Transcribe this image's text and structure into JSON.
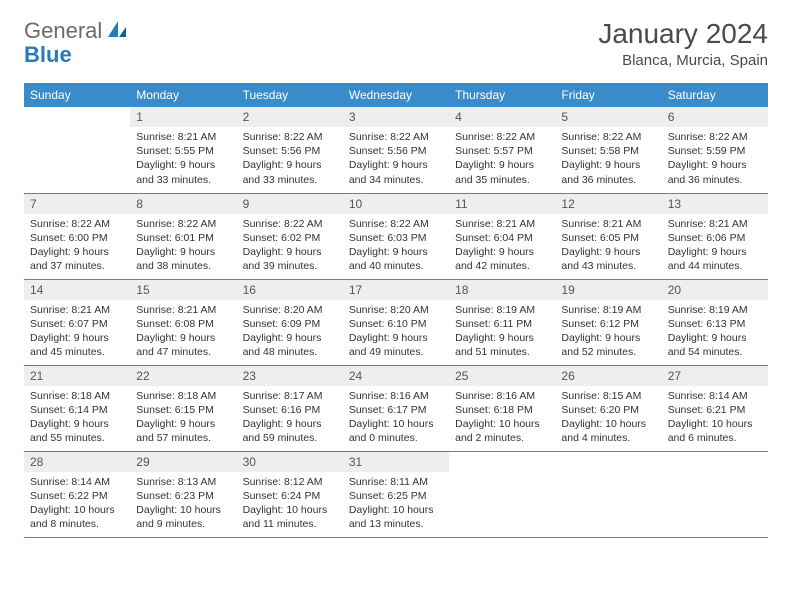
{
  "brand": {
    "part1": "General",
    "part2": "Blue"
  },
  "title": "January 2024",
  "subtitle": "Blanca, Murcia, Spain",
  "colors": {
    "header_bg": "#3a8bc9",
    "header_text": "#ffffff",
    "daynum_bg": "#eeeeee",
    "border": "#3a8bc9",
    "brand_gray": "#6b6b6b",
    "brand_blue": "#2a7ab8"
  },
  "weekdays": [
    "Sunday",
    "Monday",
    "Tuesday",
    "Wednesday",
    "Thursday",
    "Friday",
    "Saturday"
  ],
  "weeks": [
    [
      {
        "day": "",
        "sunrise": "",
        "sunset": "",
        "daylight": ""
      },
      {
        "day": "1",
        "sunrise": "Sunrise: 8:21 AM",
        "sunset": "Sunset: 5:55 PM",
        "daylight": "Daylight: 9 hours and 33 minutes."
      },
      {
        "day": "2",
        "sunrise": "Sunrise: 8:22 AM",
        "sunset": "Sunset: 5:56 PM",
        "daylight": "Daylight: 9 hours and 33 minutes."
      },
      {
        "day": "3",
        "sunrise": "Sunrise: 8:22 AM",
        "sunset": "Sunset: 5:56 PM",
        "daylight": "Daylight: 9 hours and 34 minutes."
      },
      {
        "day": "4",
        "sunrise": "Sunrise: 8:22 AM",
        "sunset": "Sunset: 5:57 PM",
        "daylight": "Daylight: 9 hours and 35 minutes."
      },
      {
        "day": "5",
        "sunrise": "Sunrise: 8:22 AM",
        "sunset": "Sunset: 5:58 PM",
        "daylight": "Daylight: 9 hours and 36 minutes."
      },
      {
        "day": "6",
        "sunrise": "Sunrise: 8:22 AM",
        "sunset": "Sunset: 5:59 PM",
        "daylight": "Daylight: 9 hours and 36 minutes."
      }
    ],
    [
      {
        "day": "7",
        "sunrise": "Sunrise: 8:22 AM",
        "sunset": "Sunset: 6:00 PM",
        "daylight": "Daylight: 9 hours and 37 minutes."
      },
      {
        "day": "8",
        "sunrise": "Sunrise: 8:22 AM",
        "sunset": "Sunset: 6:01 PM",
        "daylight": "Daylight: 9 hours and 38 minutes."
      },
      {
        "day": "9",
        "sunrise": "Sunrise: 8:22 AM",
        "sunset": "Sunset: 6:02 PM",
        "daylight": "Daylight: 9 hours and 39 minutes."
      },
      {
        "day": "10",
        "sunrise": "Sunrise: 8:22 AM",
        "sunset": "Sunset: 6:03 PM",
        "daylight": "Daylight: 9 hours and 40 minutes."
      },
      {
        "day": "11",
        "sunrise": "Sunrise: 8:21 AM",
        "sunset": "Sunset: 6:04 PM",
        "daylight": "Daylight: 9 hours and 42 minutes."
      },
      {
        "day": "12",
        "sunrise": "Sunrise: 8:21 AM",
        "sunset": "Sunset: 6:05 PM",
        "daylight": "Daylight: 9 hours and 43 minutes."
      },
      {
        "day": "13",
        "sunrise": "Sunrise: 8:21 AM",
        "sunset": "Sunset: 6:06 PM",
        "daylight": "Daylight: 9 hours and 44 minutes."
      }
    ],
    [
      {
        "day": "14",
        "sunrise": "Sunrise: 8:21 AM",
        "sunset": "Sunset: 6:07 PM",
        "daylight": "Daylight: 9 hours and 45 minutes."
      },
      {
        "day": "15",
        "sunrise": "Sunrise: 8:21 AM",
        "sunset": "Sunset: 6:08 PM",
        "daylight": "Daylight: 9 hours and 47 minutes."
      },
      {
        "day": "16",
        "sunrise": "Sunrise: 8:20 AM",
        "sunset": "Sunset: 6:09 PM",
        "daylight": "Daylight: 9 hours and 48 minutes."
      },
      {
        "day": "17",
        "sunrise": "Sunrise: 8:20 AM",
        "sunset": "Sunset: 6:10 PM",
        "daylight": "Daylight: 9 hours and 49 minutes."
      },
      {
        "day": "18",
        "sunrise": "Sunrise: 8:19 AM",
        "sunset": "Sunset: 6:11 PM",
        "daylight": "Daylight: 9 hours and 51 minutes."
      },
      {
        "day": "19",
        "sunrise": "Sunrise: 8:19 AM",
        "sunset": "Sunset: 6:12 PM",
        "daylight": "Daylight: 9 hours and 52 minutes."
      },
      {
        "day": "20",
        "sunrise": "Sunrise: 8:19 AM",
        "sunset": "Sunset: 6:13 PM",
        "daylight": "Daylight: 9 hours and 54 minutes."
      }
    ],
    [
      {
        "day": "21",
        "sunrise": "Sunrise: 8:18 AM",
        "sunset": "Sunset: 6:14 PM",
        "daylight": "Daylight: 9 hours and 55 minutes."
      },
      {
        "day": "22",
        "sunrise": "Sunrise: 8:18 AM",
        "sunset": "Sunset: 6:15 PM",
        "daylight": "Daylight: 9 hours and 57 minutes."
      },
      {
        "day": "23",
        "sunrise": "Sunrise: 8:17 AM",
        "sunset": "Sunset: 6:16 PM",
        "daylight": "Daylight: 9 hours and 59 minutes."
      },
      {
        "day": "24",
        "sunrise": "Sunrise: 8:16 AM",
        "sunset": "Sunset: 6:17 PM",
        "daylight": "Daylight: 10 hours and 0 minutes."
      },
      {
        "day": "25",
        "sunrise": "Sunrise: 8:16 AM",
        "sunset": "Sunset: 6:18 PM",
        "daylight": "Daylight: 10 hours and 2 minutes."
      },
      {
        "day": "26",
        "sunrise": "Sunrise: 8:15 AM",
        "sunset": "Sunset: 6:20 PM",
        "daylight": "Daylight: 10 hours and 4 minutes."
      },
      {
        "day": "27",
        "sunrise": "Sunrise: 8:14 AM",
        "sunset": "Sunset: 6:21 PM",
        "daylight": "Daylight: 10 hours and 6 minutes."
      }
    ],
    [
      {
        "day": "28",
        "sunrise": "Sunrise: 8:14 AM",
        "sunset": "Sunset: 6:22 PM",
        "daylight": "Daylight: 10 hours and 8 minutes."
      },
      {
        "day": "29",
        "sunrise": "Sunrise: 8:13 AM",
        "sunset": "Sunset: 6:23 PM",
        "daylight": "Daylight: 10 hours and 9 minutes."
      },
      {
        "day": "30",
        "sunrise": "Sunrise: 8:12 AM",
        "sunset": "Sunset: 6:24 PM",
        "daylight": "Daylight: 10 hours and 11 minutes."
      },
      {
        "day": "31",
        "sunrise": "Sunrise: 8:11 AM",
        "sunset": "Sunset: 6:25 PM",
        "daylight": "Daylight: 10 hours and 13 minutes."
      },
      {
        "day": "",
        "sunrise": "",
        "sunset": "",
        "daylight": ""
      },
      {
        "day": "",
        "sunrise": "",
        "sunset": "",
        "daylight": ""
      },
      {
        "day": "",
        "sunrise": "",
        "sunset": "",
        "daylight": ""
      }
    ]
  ]
}
